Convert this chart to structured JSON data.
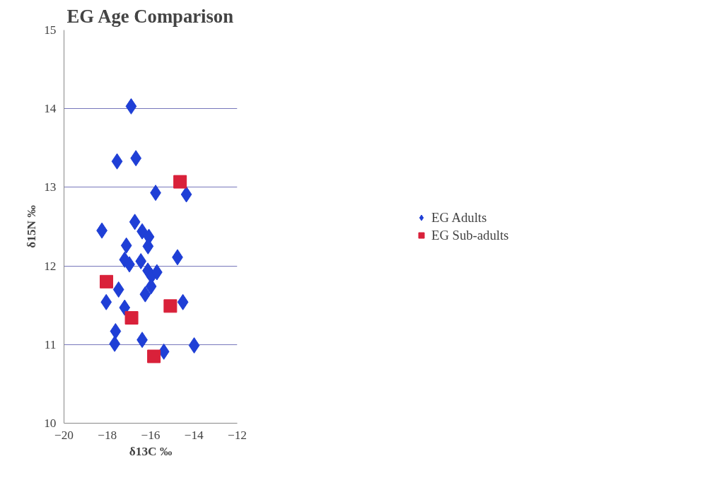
{
  "chart_data": {
    "type": "scatter",
    "title": "EG Age Comparison",
    "xlabel": "δ13C ‰",
    "ylabel": "δ15N ‰",
    "xlim": [
      -20,
      -12
    ],
    "xticks": [
      -20,
      -18,
      -16,
      -14,
      -12
    ],
    "ylim": [
      10,
      15
    ],
    "yticks": [
      10,
      11,
      12,
      13,
      14,
      15
    ],
    "grid": "y",
    "legend": "right",
    "series": [
      {
        "name": "EG Adults",
        "color": "#1f3fd6",
        "marker": "diamond",
        "x": [
          -16.9,
          -17.55,
          -16.68,
          -15.77,
          -14.35,
          -18.25,
          -16.73,
          -16.39,
          -16.08,
          -16.12,
          -17.12,
          -17.2,
          -16.98,
          -16.45,
          -14.76,
          -16.13,
          -15.96,
          -15.71,
          -15.98,
          -17.48,
          -16.25,
          -18.05,
          -17.2,
          -14.51,
          -17.62,
          -17.66,
          -16.39,
          -15.39,
          -13.99
        ],
        "values": [
          14.03,
          13.33,
          13.37,
          12.93,
          12.91,
          12.45,
          12.56,
          12.44,
          12.37,
          12.25,
          12.26,
          12.08,
          12.02,
          12.06,
          12.11,
          11.94,
          11.87,
          11.92,
          11.74,
          11.7,
          11.64,
          11.54,
          11.47,
          11.54,
          11.17,
          11.01,
          11.06,
          10.91,
          10.99
        ]
      },
      {
        "name": "EG Sub-adults",
        "color": "#d9213a",
        "marker": "square",
        "x": [
          -18.04,
          -16.88,
          -15.85,
          -15.09,
          -14.64
        ],
        "values": [
          11.8,
          11.34,
          10.85,
          11.49,
          13.07
        ]
      }
    ]
  }
}
